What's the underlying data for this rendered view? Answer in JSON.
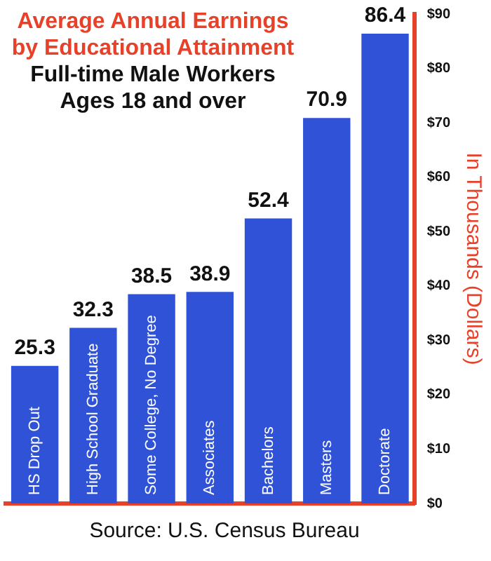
{
  "chart_data": {
    "type": "bar",
    "title": "Average Annual Earnings by Educational Attainment",
    "subtitle": "Full-time Male Workers Ages 18 and over",
    "ylabel": "In Thousands (Dollars)",
    "categories": [
      "HS Drop Out",
      "High School Graduate",
      "Some College, No Degree",
      "Associates",
      "Bachelors",
      "Masters",
      "Doctorate"
    ],
    "values": [
      25.3,
      32.3,
      38.5,
      38.9,
      52.4,
      70.9,
      86.4
    ],
    "color": "#2f52d6",
    "data_labels": true,
    "grid": false,
    "legend": false,
    "ylim": [
      0,
      90
    ],
    "yticks": [
      {
        "value": 0,
        "label": "$0"
      },
      {
        "value": 10,
        "label": "$10"
      },
      {
        "value": 20,
        "label": "$20"
      },
      {
        "value": 30,
        "label": "$30"
      },
      {
        "value": 40,
        "label": "$40"
      },
      {
        "value": 50,
        "label": "$50"
      },
      {
        "value": 60,
        "label": "$60"
      },
      {
        "value": 70,
        "label": "$70"
      },
      {
        "value": 80,
        "label": "$80"
      },
      {
        "value": 90,
        "label": "$90"
      }
    ],
    "annotations": [
      "Source: U.S. Census Bureau"
    ]
  }
}
